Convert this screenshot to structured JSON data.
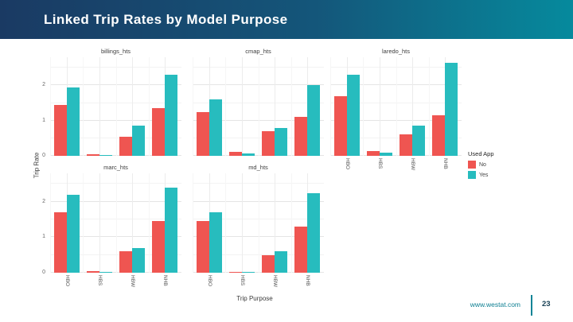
{
  "slide": {
    "title": "Linked Trip Rates by Model Purpose",
    "page_number": "23",
    "website": "www.westat.com"
  },
  "theme": {
    "header_gradient_left": "#1a3a63",
    "header_gradient_right": "#068a9d",
    "footer_accent": "#0d8496",
    "bar_no_color": "#ef5551",
    "bar_yes_color": "#27bcbe"
  },
  "chart_data": {
    "type": "bar",
    "title": "",
    "xlabel": "Trip Purpose",
    "ylabel": "Trip Rate",
    "categories": [
      "HBO",
      "HBS",
      "HBW",
      "NHB"
    ],
    "ylim": [
      0,
      2.8
    ],
    "yticks": [
      0,
      1,
      2
    ],
    "grid": true,
    "facet_columns": 3,
    "legend": {
      "title": "Used App",
      "position": "right",
      "items": [
        {
          "label": "No",
          "color": "#ef5551"
        },
        {
          "label": "Yes",
          "color": "#27bcbe"
        }
      ]
    },
    "facets": [
      {
        "label": "billings_hts",
        "row": 0,
        "col": 0,
        "show_x_labels": false,
        "series": [
          {
            "name": "No",
            "values": [
              1.45,
              0.05,
              0.55,
              1.35
            ]
          },
          {
            "name": "Yes",
            "values": [
              1.95,
              0.02,
              0.85,
              2.3
            ]
          }
        ]
      },
      {
        "label": "cmap_hts",
        "row": 0,
        "col": 1,
        "show_x_labels": false,
        "series": [
          {
            "name": "No",
            "values": [
              1.25,
              0.12,
              0.7,
              1.1
            ]
          },
          {
            "name": "Yes",
            "values": [
              1.6,
              0.06,
              0.8,
              2.0
            ]
          }
        ]
      },
      {
        "label": "laredo_hts",
        "row": 0,
        "col": 2,
        "show_x_labels": true,
        "series": [
          {
            "name": "No",
            "values": [
              1.7,
              0.14,
              0.6,
              1.15
            ]
          },
          {
            "name": "Yes",
            "values": [
              2.3,
              0.1,
              0.85,
              2.65
            ]
          }
        ]
      },
      {
        "label": "marc_hts",
        "row": 1,
        "col": 0,
        "show_x_labels": true,
        "series": [
          {
            "name": "No",
            "values": [
              1.7,
              0.05,
              0.6,
              1.45
            ]
          },
          {
            "name": "Yes",
            "values": [
              2.2,
              0.02,
              0.7,
              2.4
            ]
          }
        ]
      },
      {
        "label": "md_hts",
        "row": 1,
        "col": 1,
        "show_x_labels": true,
        "series": [
          {
            "name": "No",
            "values": [
              1.45,
              0.03,
              0.5,
              1.3
            ]
          },
          {
            "name": "Yes",
            "values": [
              1.7,
              0.03,
              0.6,
              2.25
            ]
          }
        ]
      }
    ]
  }
}
